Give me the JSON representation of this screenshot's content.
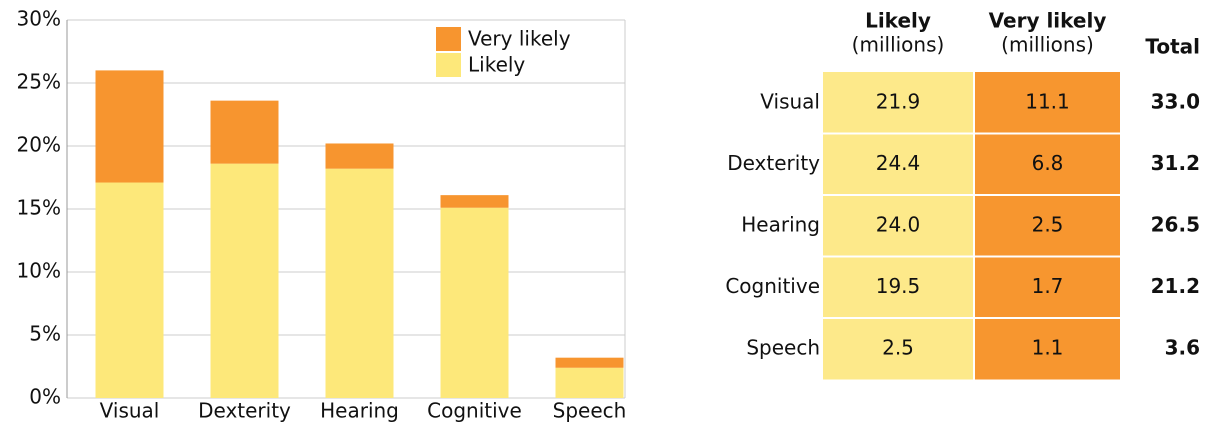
{
  "chart_data": {
    "type": "bar",
    "stacked": true,
    "categories": [
      "Visual",
      "Dexterity",
      "Hearing",
      "Cognitive",
      "Speech"
    ],
    "series": [
      {
        "name": "Likely",
        "color": "#fde87a",
        "values": [
          17.1,
          18.6,
          18.2,
          15.1,
          2.4
        ]
      },
      {
        "name": "Very likely",
        "color": "#f7952f",
        "values": [
          8.9,
          5.0,
          2.0,
          1.0,
          0.8
        ]
      }
    ],
    "ylim": [
      0,
      30
    ],
    "yticks": [
      {
        "value": 0,
        "label": "0%"
      },
      {
        "value": 5,
        "label": "5%"
      },
      {
        "value": 10,
        "label": "10%"
      },
      {
        "value": 15,
        "label": "15%"
      },
      {
        "value": 20,
        "label": "20%"
      },
      {
        "value": 25,
        "label": "25%"
      },
      {
        "value": 30,
        "label": "30%"
      }
    ],
    "grid": true,
    "legend": "upper right"
  },
  "table": {
    "columns": [
      {
        "label": "Likely",
        "unit": "(millions)",
        "color": "#fde98a"
      },
      {
        "label": "Very likely",
        "unit": "(millions)",
        "color": "#f7962f"
      },
      {
        "label": "Total"
      }
    ],
    "rows": [
      {
        "label": "Visual",
        "cells": [
          "21.9",
          "11.1",
          "33.0"
        ]
      },
      {
        "label": "Dexterity",
        "cells": [
          "24.4",
          "6.8",
          "31.2"
        ]
      },
      {
        "label": "Hearing",
        "cells": [
          "24.0",
          "2.5",
          "26.5"
        ]
      },
      {
        "label": "Cognitive",
        "cells": [
          "19.5",
          "1.7",
          "21.2"
        ]
      },
      {
        "label": "Speech",
        "cells": [
          "2.5",
          "1.1",
          "3.6"
        ]
      }
    ]
  }
}
